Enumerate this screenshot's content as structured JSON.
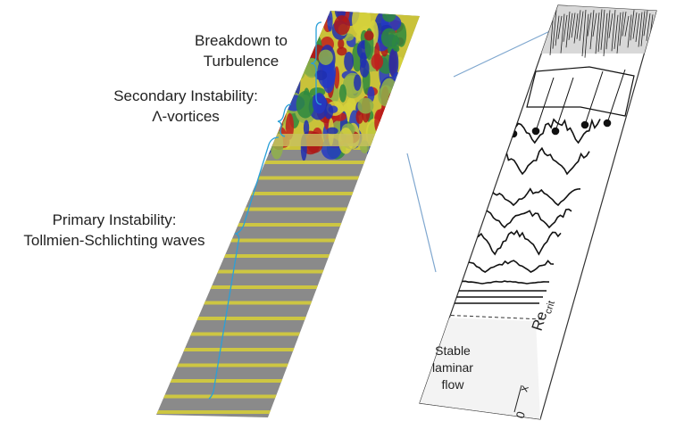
{
  "labels": [
    {
      "lines": [
        "Breakdown to",
        "Turbulence"
      ]
    },
    {
      "lines": [
        "Secondary Instability:",
        "Λ-vortices"
      ]
    },
    {
      "lines": [
        "Primary Instability:",
        "Tollmien-Schlichting waves"
      ]
    }
  ],
  "panel": {
    "threshold": {
      "main": "Re",
      "sub": "crit"
    },
    "region": [
      "Stable",
      "laminar",
      "flow"
    ],
    "axis": {
      "label": "x",
      "origin": "0"
    }
  }
}
